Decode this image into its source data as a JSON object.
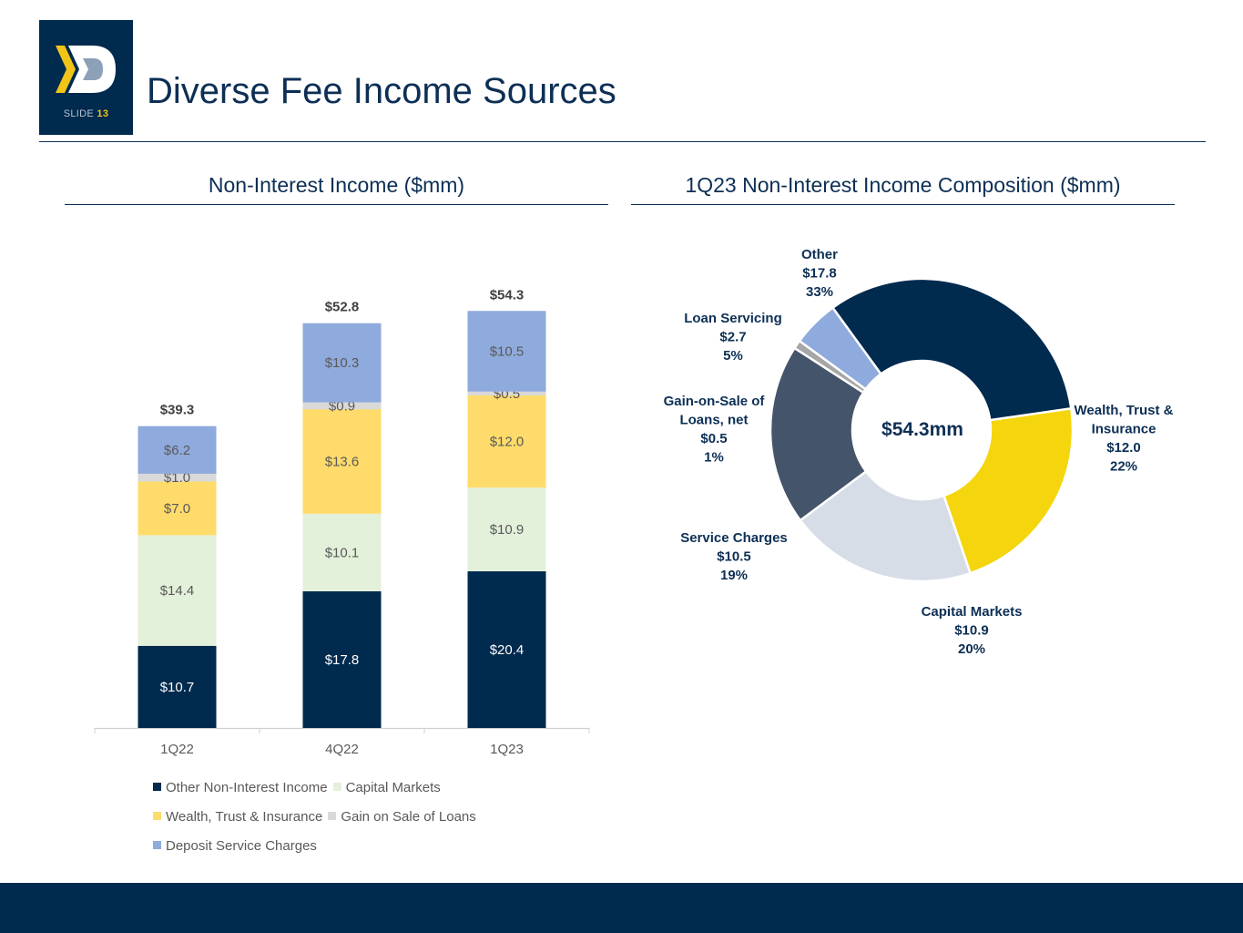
{
  "header": {
    "title": "Diverse Fee Income Sources",
    "slide_label": "SLIDE",
    "slide_number": "13"
  },
  "left_section": {
    "title": "Non-Interest Income ($mm)"
  },
  "right_section": {
    "title": "1Q23 Non-Interest Income Composition ($mm)"
  },
  "colors": {
    "navy": "#002a4e",
    "accent_yellow": "#f3c418"
  },
  "chart_data": [
    {
      "type": "bar",
      "stacked": true,
      "title": "Non-Interest Income ($mm)",
      "categories": [
        "1Q22",
        "4Q22",
        "1Q23"
      ],
      "ylim": [
        0,
        60
      ],
      "series": [
        {
          "name": "Other Non-Interest Income",
          "color": "#002a4e",
          "label_color": "#ffffff",
          "values": [
            10.7,
            17.8,
            20.4
          ],
          "labels": [
            "$10.7",
            "$17.8",
            "$20.4"
          ]
        },
        {
          "name": "Capital Markets",
          "color": "#e3f0da",
          "label_color": "#595959",
          "values": [
            14.4,
            10.1,
            10.9
          ],
          "labels": [
            "$14.4",
            "$10.1",
            "$10.9"
          ]
        },
        {
          "name": "Wealth, Trust & Insurance",
          "color": "#fedb6a",
          "label_color": "#595959",
          "values": [
            7.0,
            13.6,
            12.0
          ],
          "labels": [
            "$7.0",
            "$13.6",
            "$12.0"
          ]
        },
        {
          "name": "Gain on Sale of Loans",
          "color": "#d9d9d9",
          "label_color": "#595959",
          "values": [
            1.0,
            0.9,
            0.5
          ],
          "labels": [
            "$1.0",
            "$0.9",
            "$0.5"
          ]
        },
        {
          "name": "Deposit Service Charges",
          "color": "#8faadc",
          "label_color": "#595959",
          "values": [
            6.2,
            10.3,
            10.5
          ],
          "labels": [
            "$6.2",
            "$10.3",
            "$10.5"
          ]
        }
      ],
      "totals": [
        "$39.3",
        "$52.8",
        "$54.3"
      ],
      "legend_rows": [
        [
          "Other Non-Interest Income",
          "Capital Markets"
        ],
        [
          "Wealth, Trust & Insurance",
          "Gain on Sale of Loans"
        ],
        [
          "Deposit Service Charges"
        ]
      ]
    },
    {
      "type": "pie",
      "donut": true,
      "title": "1Q23 Non-Interest Income Composition ($mm)",
      "center_label": "$54.3mm",
      "slices": [
        {
          "name": "Other",
          "value": 17.8,
          "percent": 33,
          "color": "#002a4e",
          "label_lines": [
            "Other",
            "$17.8",
            "33%"
          ]
        },
        {
          "name": "Wealth, Trust & Insurance",
          "value": 12.0,
          "percent": 22,
          "color": "#f5d50d",
          "label_lines": [
            "Wealth, Trust &",
            "Insurance",
            "$12.0",
            "22%"
          ]
        },
        {
          "name": "Capital Markets",
          "value": 10.9,
          "percent": 20,
          "color": "#d6dde7",
          "label_lines": [
            "Capital Markets",
            "$10.9",
            "20%"
          ]
        },
        {
          "name": "Service Charges",
          "value": 10.5,
          "percent": 19,
          "color": "#44546a",
          "label_lines": [
            "Service Charges",
            "$10.5",
            "19%"
          ]
        },
        {
          "name": "Gain-on-Sale of Loans, net",
          "value": 0.5,
          "percent": 1,
          "color": "#a6a6a6",
          "label_lines": [
            "Gain-on-Sale of",
            "Loans, net",
            "$0.5",
            "1%"
          ]
        },
        {
          "name": "Loan Servicing",
          "value": 2.7,
          "percent": 5,
          "color": "#8faadc",
          "label_lines": [
            "Loan Servicing",
            "$2.7",
            "5%"
          ]
        }
      ]
    }
  ]
}
